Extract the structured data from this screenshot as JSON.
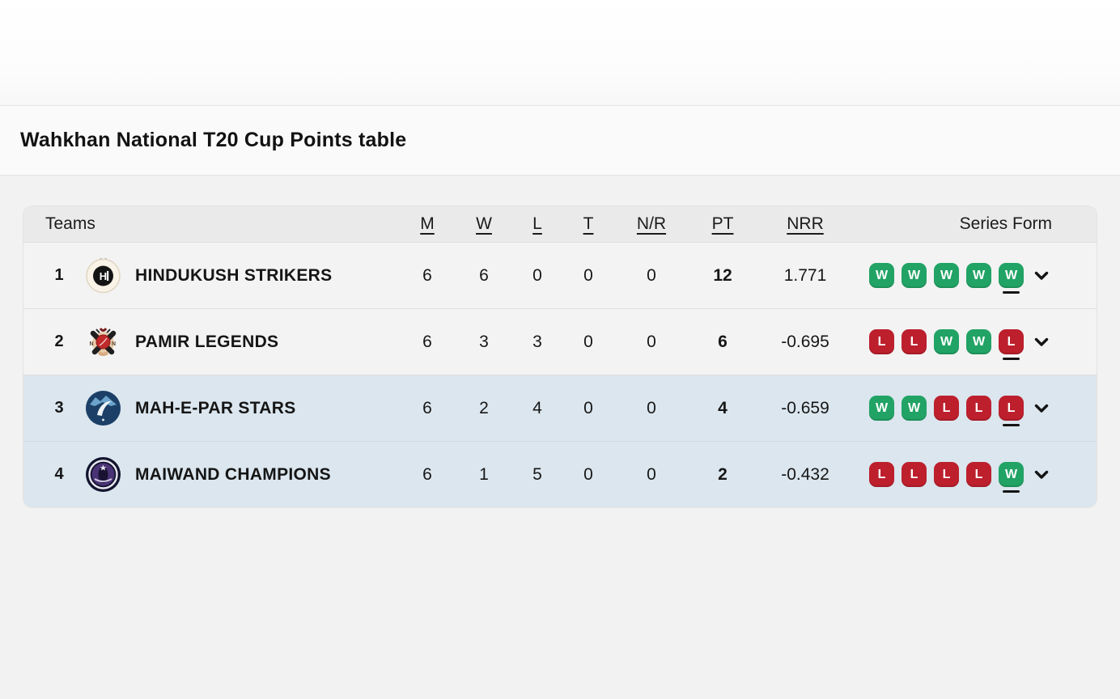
{
  "page": {
    "title": "Wahkhan National T20 Cup Points table"
  },
  "table": {
    "headers": {
      "teams": "Teams",
      "m": "M",
      "w": "W",
      "l": "L",
      "t": "T",
      "nr": "N/R",
      "pt": "PT",
      "nrr": "NRR",
      "series_form": "Series Form"
    },
    "colors": {
      "win": "#21a365",
      "loss": "#bd1f2d",
      "highlight_row": "#dbe6ee"
    },
    "icons": {
      "expand": "chevron-down-icon"
    },
    "rows": [
      {
        "rank": "1",
        "team": "HINDUKUSH STRIKERS",
        "logo": "hindukush-strikers",
        "m": "6",
        "w": "6",
        "l": "0",
        "t": "0",
        "nr": "0",
        "pt": "12",
        "nrr": "1.771",
        "form": [
          "W",
          "W",
          "W",
          "W",
          "W"
        ],
        "highlighted": false
      },
      {
        "rank": "2",
        "team": "PAMIR LEGENDS",
        "logo": "pamir-legends",
        "m": "6",
        "w": "3",
        "l": "3",
        "t": "0",
        "nr": "0",
        "pt": "6",
        "nrr": "-0.695",
        "form": [
          "L",
          "L",
          "W",
          "W",
          "L"
        ],
        "highlighted": false
      },
      {
        "rank": "3",
        "team": "MAH-E-PAR STARS",
        "logo": "mah-e-par-stars",
        "m": "6",
        "w": "2",
        "l": "4",
        "t": "0",
        "nr": "0",
        "pt": "4",
        "nrr": "-0.659",
        "form": [
          "W",
          "W",
          "L",
          "L",
          "L"
        ],
        "highlighted": true
      },
      {
        "rank": "4",
        "team": "MAIWAND CHAMPIONS",
        "logo": "maiwand-champions",
        "m": "6",
        "w": "1",
        "l": "5",
        "t": "0",
        "nr": "0",
        "pt": "2",
        "nrr": "-0.432",
        "form": [
          "L",
          "L",
          "L",
          "L",
          "W"
        ],
        "highlighted": true
      }
    ]
  }
}
